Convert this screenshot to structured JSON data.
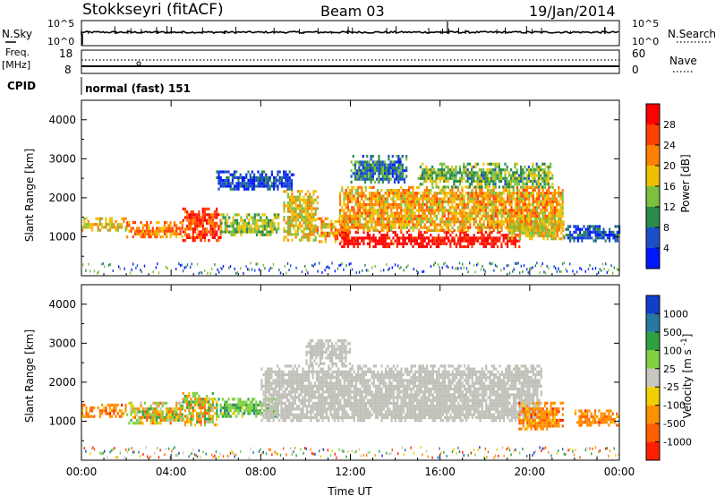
{
  "header": {
    "station": "Stokkseyri (fitACF)",
    "beam": "Beam 03",
    "date": "19/Jan/2014"
  },
  "noise_panel": {
    "left_label": "N.Sky",
    "right_label": "N.Search",
    "left_ticks": [
      "10^5",
      "10^0"
    ],
    "right_ticks": [
      "10^5",
      "10^0"
    ]
  },
  "freq_panel": {
    "left_label_top": "Freq.",
    "left_label_bottom": "[MHz]",
    "right_label": "Nave",
    "left_ticks": [
      "18",
      "8"
    ],
    "right_ticks": [
      "60",
      "0"
    ]
  },
  "cpid": {
    "label": "CPID",
    "value": "normal (fast) 151"
  },
  "colors": {
    "power_scale": [
      "#0018ff",
      "#1c50c8",
      "#2a8a4a",
      "#7cc040",
      "#f0c000",
      "#ff8000",
      "#ff4000",
      "#ff0000"
    ],
    "velocity_scale": [
      "#1040c8",
      "#2878a0",
      "#30a040",
      "#80d040",
      "#c8c8c0",
      "#f0d000",
      "#ff9000",
      "#ff6000",
      "#ff2000"
    ],
    "ground_scatter": "#c0c0b8"
  },
  "chart_data": [
    {
      "type": "heatmap",
      "name": "power",
      "xlabel": "",
      "ylabel": "Slant Range [km]",
      "x_ticks": [
        "00:00",
        "04:00",
        "08:00",
        "12:00",
        "16:00",
        "20:00",
        "00:00"
      ],
      "xlim": [
        0,
        24
      ],
      "ylim": [
        0,
        4500
      ],
      "y_ticks": [
        1000,
        2000,
        3000,
        4000
      ],
      "colorbar": {
        "label": "Power [dB]",
        "ticks": [
          "28",
          "24",
          "20",
          "16",
          "12",
          "8",
          "4"
        ],
        "range": [
          0,
          32
        ]
      },
      "regions": [
        {
          "t_start": 0.0,
          "t_end": 2.0,
          "r_min": 1150,
          "r_max": 1500,
          "level": 0.55
        },
        {
          "t_start": 2.0,
          "t_end": 4.5,
          "r_min": 1000,
          "r_max": 1400,
          "level": 0.7
        },
        {
          "t_start": 4.5,
          "t_end": 6.2,
          "r_min": 900,
          "r_max": 1750,
          "level": 0.85
        },
        {
          "t_start": 6.2,
          "t_end": 8.8,
          "r_min": 1050,
          "r_max": 1600,
          "level": 0.45
        },
        {
          "t_start": 9.0,
          "t_end": 10.5,
          "r_min": 950,
          "r_max": 2200,
          "level": 0.55
        },
        {
          "t_start": 10.5,
          "t_end": 12.0,
          "r_min": 900,
          "r_max": 1500,
          "level": 0.65
        },
        {
          "t_start": 11.5,
          "t_end": 19.5,
          "r_min": 750,
          "r_max": 1150,
          "level": 0.95
        },
        {
          "t_start": 11.5,
          "t_end": 21.5,
          "r_min": 1150,
          "r_max": 2300,
          "level": 0.62
        },
        {
          "t_start": 19.0,
          "t_end": 21.5,
          "r_min": 950,
          "r_max": 1500,
          "level": 0.55
        },
        {
          "t_start": 6.0,
          "t_end": 9.5,
          "r_min": 2200,
          "r_max": 2700,
          "level": 0.15
        },
        {
          "t_start": 12.0,
          "t_end": 14.5,
          "r_min": 2400,
          "r_max": 3100,
          "level": 0.25
        },
        {
          "t_start": 15.0,
          "t_end": 21.0,
          "r_min": 2300,
          "r_max": 2900,
          "level": 0.4
        },
        {
          "t_start": 21.5,
          "t_end": 24.0,
          "r_min": 900,
          "r_max": 1300,
          "level": 0.2
        }
      ]
    },
    {
      "type": "heatmap",
      "name": "velocity",
      "xlabel": "Time UT",
      "ylabel": "Slant Range [km]",
      "x_ticks": [
        "00:00",
        "04:00",
        "08:00",
        "12:00",
        "16:00",
        "20:00",
        "00:00"
      ],
      "xlim": [
        0,
        24
      ],
      "ylim": [
        0,
        4500
      ],
      "y_ticks": [
        1000,
        2000,
        3000,
        4000
      ],
      "colorbar": {
        "label": "Velocity [m s^-1]",
        "ticks": [
          "1000",
          "500",
          "100",
          "25",
          "-25",
          "-100",
          "-500",
          "-1000"
        ],
        "range": [
          -1200,
          1200
        ]
      },
      "regions": [
        {
          "t_start": 0.0,
          "t_end": 2.0,
          "r_min": 1150,
          "r_max": 1450,
          "kind": "neg",
          "level": 0.7
        },
        {
          "t_start": 2.0,
          "t_end": 4.5,
          "r_min": 950,
          "r_max": 1500,
          "kind": "mix",
          "level": 0.55
        },
        {
          "t_start": 4.5,
          "t_end": 6.0,
          "r_min": 900,
          "r_max": 1750,
          "kind": "mix",
          "level": 0.45
        },
        {
          "t_start": 6.0,
          "t_end": 8.8,
          "r_min": 1100,
          "r_max": 1600,
          "kind": "pos",
          "level": 0.6
        },
        {
          "t_start": 8.0,
          "t_end": 20.5,
          "r_min": 1000,
          "r_max": 2450,
          "kind": "gs",
          "level": 0.5
        },
        {
          "t_start": 10.0,
          "t_end": 12.0,
          "r_min": 2500,
          "r_max": 3100,
          "kind": "gs",
          "level": 0.5
        },
        {
          "t_start": 19.5,
          "t_end": 21.5,
          "r_min": 800,
          "r_max": 1500,
          "kind": "neg",
          "level": 0.65
        },
        {
          "t_start": 22.0,
          "t_end": 24.0,
          "r_min": 900,
          "r_max": 1300,
          "kind": "neg",
          "level": 0.9
        }
      ]
    }
  ]
}
